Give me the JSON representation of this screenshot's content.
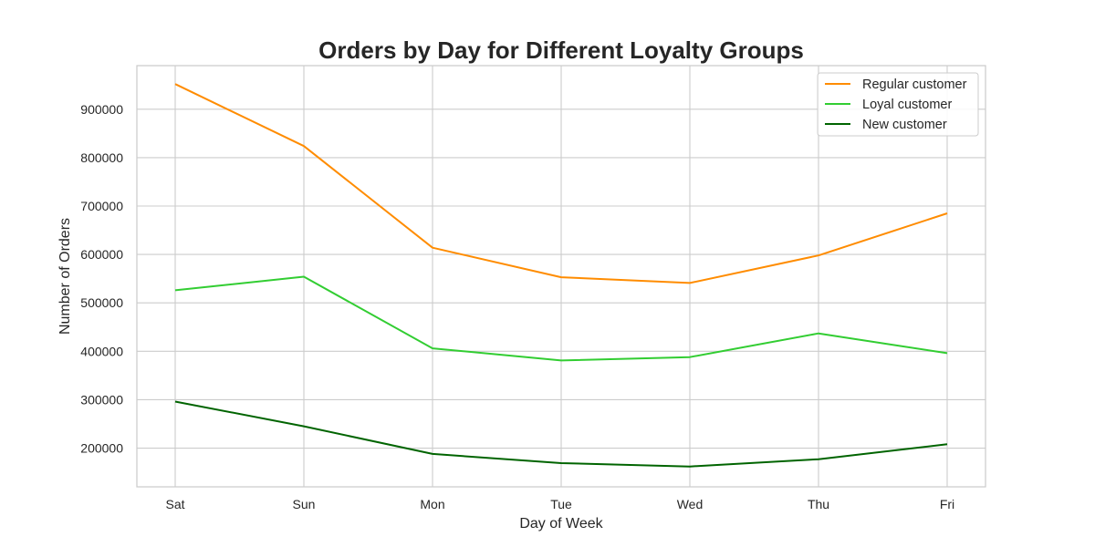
{
  "chart_data": {
    "type": "line",
    "title": "Orders by Day for Different Loyalty Groups",
    "xlabel": "Day of Week",
    "ylabel": "Number of Orders",
    "categories": [
      "Sat",
      "Sun",
      "Mon",
      "Tue",
      "Wed",
      "Thu",
      "Fri"
    ],
    "ylim": [
      120000,
      990000
    ],
    "yticks": [
      200000,
      300000,
      400000,
      500000,
      600000,
      700000,
      800000,
      900000
    ],
    "grid": true,
    "legend_position": "top-right",
    "series": [
      {
        "name": "Regular customer",
        "color": "#ff8c00",
        "values": [
          952000,
          824000,
          614000,
          553000,
          541000,
          598000,
          685000
        ]
      },
      {
        "name": "Loyal customer",
        "color": "#32cd32",
        "values": [
          526000,
          554000,
          406000,
          381000,
          388000,
          437000,
          396000
        ]
      },
      {
        "name": "New customer",
        "color": "#006400",
        "values": [
          296000,
          245000,
          188000,
          169000,
          162000,
          177000,
          208000
        ]
      }
    ]
  }
}
